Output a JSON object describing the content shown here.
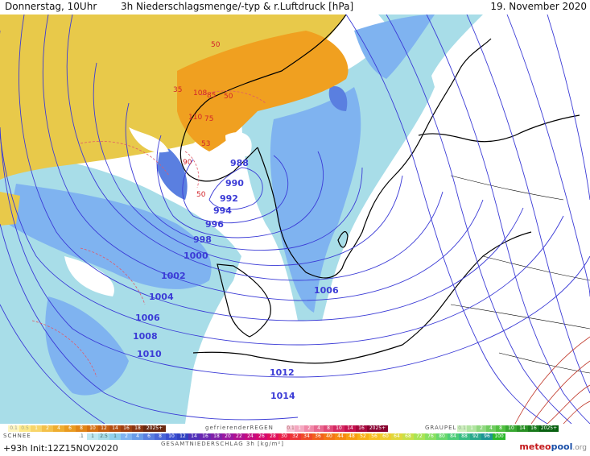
{
  "header": {
    "left": "Donnerstag, 10Uhr",
    "center": "3h Niederschlagsmenge/-typ & r.Luftdruck [hPa]",
    "right": "19. November 2020"
  },
  "map": {
    "isobar_labels": [
      "988",
      "990",
      "992",
      "994",
      "996",
      "998",
      "1000",
      "1002",
      "1004",
      "1006",
      "1008",
      "1010",
      "1012",
      "1014",
      "1006"
    ],
    "precip_labels": [
      "50",
      "35",
      "108",
      "85",
      "50",
      "110",
      "75",
      "53",
      "50",
      "90"
    ],
    "colors": {
      "snow": "#e8c94a",
      "snow_deep": "#f0a020",
      "rain_light": "#a8dde8",
      "rain_mid": "#7fb3f0",
      "rain_heavy": "#5a7fe0",
      "isobar": "#3b3bd6",
      "land": "#ffffff",
      "coast": "#000000"
    }
  },
  "legend": {
    "snow_label": "SCHNEE",
    "snow_values": [
      "0.1",
      "0.5",
      "1",
      "2",
      "4",
      "6",
      "8",
      "10",
      "12",
      "14",
      "16",
      "18",
      "2025+"
    ],
    "freezing_label": "gefrierenderREGEN",
    "freezing_values": [
      "0.1",
      "1",
      "2",
      "4",
      "8",
      "10",
      "14",
      "16",
      "2025+"
    ],
    "graupel_label": "GRAUPEL",
    "graupel_values": [
      "0.1",
      "1",
      "2",
      "4",
      "8",
      "10",
      "14",
      "16",
      "2025+"
    ],
    "rain_values": [
      ".1",
      "1",
      "2.5",
      "1",
      "2",
      "4",
      "6",
      "8",
      "10",
      "12",
      "14",
      "16",
      "18",
      "20",
      "22",
      "24",
      "26",
      "28",
      "30",
      "32",
      "34",
      "36",
      "40",
      "44",
      "48",
      "52",
      "56",
      "60",
      "64",
      "68",
      "72",
      "76",
      "80",
      "84",
      "88",
      "92",
      "96",
      "100"
    ],
    "total_label": "GESAMTNIEDERSCHLAG 3h [kg/m²]"
  },
  "footer": {
    "init": "+93h Init:12Z15NOV2020",
    "logo_main": "meteo",
    "logo_pool": "pool",
    "logo_org": ".org"
  }
}
